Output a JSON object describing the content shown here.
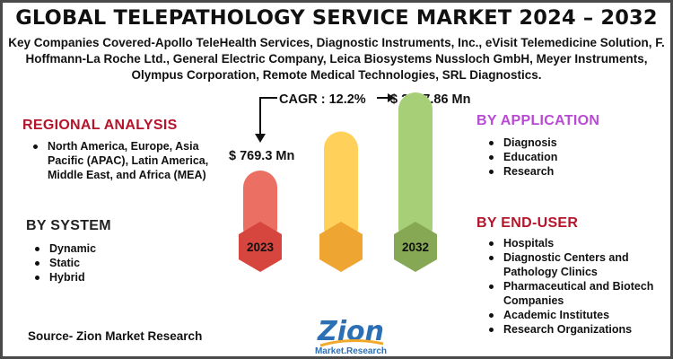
{
  "title": "GLOBAL TELEPATHOLOGY SERVICE MARKET 2024 – 2032",
  "subtitle": "Key Companies Covered-Apollo TeleHealth Services, Diagnostic Instruments, Inc., eVisit Telemedicine Solution, F. Hoffmann-La Roche Ltd., General Electric Company, Leica Biosystems Nussloch GmbH, Meyer Instruments, Olympus Corporation, Remote Medical Technologies, SRL Diagnostics.",
  "regional": {
    "heading": "REGIONAL ANALYSIS",
    "items": [
      "North America, Europe, Asia Pacific (APAC), Latin America, Middle East, and Africa (MEA)"
    ]
  },
  "system": {
    "heading": "BY SYSTEM",
    "items": [
      "Dynamic",
      "Static",
      "Hybrid"
    ]
  },
  "application": {
    "heading": "BY APPLICATION",
    "items": [
      "Diagnosis",
      "Education",
      "Research"
    ]
  },
  "end_user": {
    "heading": "BY END-USER",
    "items": [
      "Hospitals",
      "Diagnostic Centers and Pathology Clinics",
      "Pharmaceutical and Biotech Companies",
      "Academic Institutes",
      "Research Organizations"
    ]
  },
  "source": "Source- Zion Market Research",
  "logo": {
    "main": "Zion",
    "sub": "Market.Research"
  },
  "colors": {
    "regional_heading": "#b5152b",
    "system_heading": "#222222",
    "application_heading": "#b84ad6",
    "end_user_heading": "#b5152b",
    "bar_2023": "#ec6f64",
    "bar_2023_base": "#d7453f",
    "bar_middle": "#ffd05a",
    "bar_middle_base": "#efa531",
    "bar_2032": "#a7cf77",
    "bar_2032_base": "#86a855"
  },
  "chart_data": {
    "type": "bar",
    "cagr": "CAGR : 12.2%",
    "start": {
      "year": "2023",
      "label": "$ 769.3  Mn",
      "value": 769.3
    },
    "end": {
      "year": "2032",
      "label": "$ 2167.86 Mn",
      "value": 2167.86
    }
  }
}
